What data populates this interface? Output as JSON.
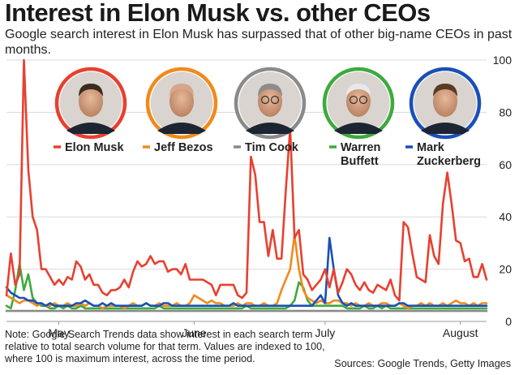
{
  "title": "Interest in Elon Musk vs. other CEOs",
  "subtitle": "Google search interest in Elon Musk has surpassed that of other big-name CEOs in past months.",
  "note": "Note: Google Search Trends data show interest in each search term relative to total search volume for that term. Values are indexed to 100, where 100 is maximum interest, across the time period.",
  "sources": "Sources: Google Trends, Getty Images",
  "chart_data": {
    "type": "line",
    "title": "Interest in Elon Musk vs. other CEOs",
    "xlabel": "",
    "ylabel": "",
    "ylim": [
      0,
      100
    ],
    "yticks": [
      0,
      20,
      40,
      60,
      80,
      100
    ],
    "month_labels": [
      {
        "label": "May",
        "index": 12
      },
      {
        "label": "June",
        "index": 43
      },
      {
        "label": "July",
        "index": 73
      },
      {
        "label": "August",
        "index": 104
      }
    ],
    "grid": true,
    "legend_position": "top",
    "series": [
      {
        "name": "Elon Musk",
        "color": "#e8402f",
        "photo": "elon-musk-photo",
        "values": [
          10,
          26,
          14,
          18,
          100,
          58,
          40,
          35,
          20,
          20,
          17,
          14,
          16,
          14,
          17,
          16,
          23,
          21,
          16,
          18,
          14,
          14,
          11,
          10,
          12,
          12,
          13,
          16,
          13,
          19,
          23,
          21,
          22,
          25,
          22,
          23,
          23,
          19,
          20,
          20,
          18,
          22,
          16,
          16,
          16,
          16,
          15,
          14,
          10,
          14,
          14,
          14,
          14,
          10,
          9,
          11,
          63,
          56,
          38,
          38,
          25,
          35,
          24,
          24,
          50,
          74,
          32,
          35,
          18,
          16,
          12,
          14,
          16,
          20,
          13,
          20,
          11,
          15,
          20,
          18,
          14,
          12,
          15,
          12,
          11,
          14,
          13,
          12,
          16,
          10,
          8,
          38,
          36,
          26,
          17,
          16,
          15,
          33,
          25,
          22,
          45,
          57,
          45,
          31,
          30,
          23,
          24,
          17,
          17,
          22,
          16
        ]
      },
      {
        "name": "Jeff Bezos",
        "color": "#f08a1c",
        "photo": "jeff-bezos-photo",
        "values": [
          10,
          9,
          8,
          7,
          8,
          8,
          7,
          6,
          7,
          6,
          6,
          7,
          6,
          6,
          7,
          6,
          6,
          7,
          6,
          7,
          6,
          6,
          5,
          6,
          6,
          6,
          6,
          5,
          6,
          7,
          6,
          6,
          7,
          6,
          6,
          7,
          6,
          6,
          6,
          7,
          6,
          6,
          7,
          10,
          9,
          8,
          7,
          8,
          7,
          7,
          6,
          6,
          6,
          7,
          6,
          7,
          7,
          6,
          6,
          7,
          6,
          6,
          7,
          12,
          16,
          20,
          33,
          20,
          12,
          9,
          8,
          7,
          8,
          7,
          7,
          8,
          8,
          7,
          7,
          6,
          7,
          6,
          6,
          7,
          6,
          6,
          7,
          7,
          6,
          6,
          7,
          6,
          5,
          6,
          6,
          7,
          6,
          7,
          6,
          6,
          7,
          6,
          7,
          8,
          7,
          7,
          6,
          7,
          6,
          7,
          7
        ]
      },
      {
        "name": "Tim Cook",
        "color": "#8a8a8a",
        "photo": "tim-cook-photo",
        "values": [
          4,
          4,
          4,
          4,
          4,
          4,
          4,
          4,
          4,
          4,
          4,
          4,
          4,
          4,
          4,
          4,
          4,
          4,
          4,
          4,
          4,
          4,
          4,
          4,
          4,
          4,
          4,
          4,
          4,
          4,
          4,
          4,
          4,
          4,
          4,
          4,
          4,
          4,
          4,
          4,
          4,
          4,
          4,
          4,
          4,
          4,
          4,
          4,
          4,
          4,
          4,
          4,
          4,
          4,
          4,
          4,
          4,
          4,
          4,
          4,
          4,
          4,
          4,
          4,
          4,
          4,
          4,
          4,
          4,
          4,
          4,
          4,
          4,
          4,
          4,
          4,
          4,
          4,
          4,
          4,
          4,
          4,
          4,
          4,
          4,
          4,
          4,
          4,
          4,
          4,
          4,
          4,
          4,
          4,
          4,
          4,
          4,
          4,
          4,
          4,
          4,
          4,
          4,
          4,
          4,
          4,
          4,
          4,
          4,
          4,
          4
        ]
      },
      {
        "name": "Warren Buffett",
        "color": "#3daa3d",
        "photo": "warren-buffett-photo",
        "values": [
          6,
          5,
          12,
          22,
          12,
          18,
          9,
          7,
          6,
          6,
          5,
          5,
          6,
          5,
          6,
          5,
          5,
          6,
          5,
          5,
          5,
          5,
          5,
          5,
          5,
          5,
          5,
          5,
          5,
          5,
          5,
          5,
          5,
          5,
          5,
          6,
          5,
          5,
          5,
          5,
          5,
          5,
          5,
          5,
          5,
          5,
          5,
          5,
          5,
          5,
          5,
          5,
          5,
          5,
          5,
          6,
          5,
          5,
          5,
          5,
          5,
          5,
          5,
          5,
          5,
          6,
          8,
          15,
          13,
          8,
          6,
          6,
          6,
          6,
          6,
          6,
          6,
          6,
          5,
          5,
          5,
          5,
          6,
          5,
          5,
          6,
          5,
          6,
          5,
          5,
          5,
          5,
          5,
          5,
          5,
          5,
          5,
          5,
          5,
          5,
          5,
          5,
          5,
          5,
          5,
          5,
          5,
          5,
          5,
          5,
          5
        ]
      },
      {
        "name": "Mark Zuckerberg",
        "color": "#1a4fb8",
        "photo": "mark-zuckerberg-photo",
        "values": [
          13,
          11,
          10,
          9,
          9,
          8,
          8,
          7,
          7,
          6,
          7,
          6,
          6,
          6,
          6,
          6,
          7,
          7,
          8,
          7,
          6,
          6,
          7,
          6,
          7,
          6,
          6,
          6,
          6,
          6,
          6,
          6,
          7,
          6,
          6,
          6,
          7,
          7,
          6,
          6,
          6,
          6,
          6,
          6,
          6,
          6,
          6,
          6,
          6,
          6,
          6,
          6,
          7,
          6,
          6,
          6,
          6,
          6,
          6,
          6,
          6,
          6,
          6,
          6,
          6,
          6,
          6,
          6,
          6,
          6,
          6,
          8,
          10,
          7,
          32,
          20,
          10,
          7,
          6,
          7,
          6,
          6,
          6,
          6,
          6,
          6,
          6,
          6,
          6,
          6,
          7,
          7,
          6,
          6,
          6,
          6,
          6,
          6,
          6,
          6,
          6,
          6,
          6,
          6,
          6,
          6,
          6,
          6,
          6,
          6,
          6
        ]
      }
    ]
  }
}
